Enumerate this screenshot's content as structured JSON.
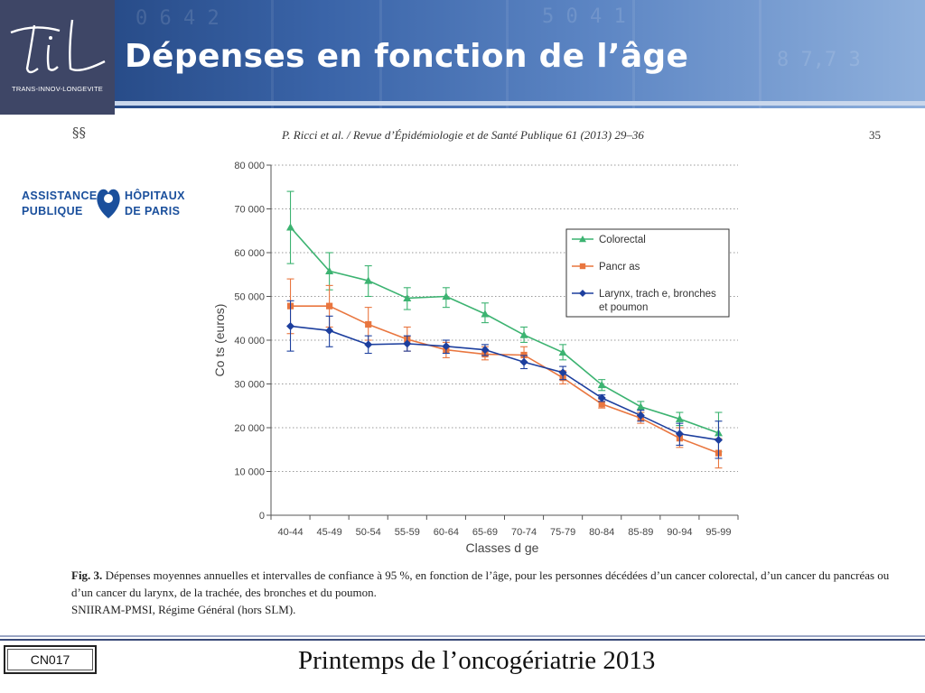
{
  "slide": {
    "title": "Dépenses en fonction de l’âge",
    "logo_tagline": "TRANS-INNOV-LONGEVITE",
    "partner_logo_text": [
      "ASSISTANCE",
      "PUBLIQUE",
      "HÔPITAUX",
      "DE  PARIS"
    ],
    "slide_code": "CN017",
    "footer_text": "Printemps de l’oncogériatrie 2013",
    "colors": {
      "header": "#2b4f8f",
      "logo_bg": "#3e4666",
      "ap_blue": "#1a4f9c"
    }
  },
  "paper": {
    "ornament": "§§",
    "running_header": "P. Ricci et al. / Revue d’Épidémiologie et de Santé Publique 61 (2013) 29–36",
    "page_number": "35",
    "caption_label": "Fig. 3.",
    "caption_text": "Dépenses moyennes annuelles et intervalles de confiance à 95 %, en fonction de l’âge, pour les personnes décédées d’un cancer colorectal, d’un cancer du pancréas ou d’un cancer du larynx, de la trachée, des bronches et du poumon.",
    "source_text": "SNIIRAM-PMSI, Régime Général (hors SLM)."
  },
  "chart_data": {
    "type": "line",
    "xlabel": "Classes d  ge",
    "ylabel": "Co   ts (euros)",
    "ylim": [
      0,
      80000
    ],
    "yticks": [
      0,
      10000,
      20000,
      30000,
      40000,
      50000,
      60000,
      70000,
      80000
    ],
    "ytick_labels": [
      "0",
      "10 000",
      "20 000",
      "30 000",
      "40 000",
      "50 000",
      "60 000",
      "70 000",
      "80 000"
    ],
    "grid": "horizontal dotted",
    "legend_position": "top-right",
    "categories": [
      "40-44",
      "45-49",
      "50-54",
      "55-59",
      "60-64",
      "65-69",
      "70-74",
      "75-79",
      "80-84",
      "85-89",
      "90-94",
      "95-99"
    ],
    "series": [
      {
        "name": "Colorectal",
        "color": "#3cb371",
        "marker": "triangle",
        "values": [
          65800,
          55800,
          53600,
          49600,
          50000,
          46000,
          41200,
          37200,
          29800,
          24800,
          22000,
          18800
        ],
        "lower": [
          57500,
          51500,
          50000,
          47000,
          47500,
          44000,
          39500,
          35500,
          28500,
          23500,
          20500,
          14500
        ],
        "upper": [
          74000,
          60000,
          57000,
          52000,
          52000,
          48500,
          43000,
          39000,
          31000,
          26000,
          23500,
          23500
        ]
      },
      {
        "name": "Pancr  as",
        "color": "#e9763f",
        "marker": "square",
        "values": [
          47800,
          47800,
          43600,
          40200,
          37800,
          36800,
          36600,
          31400,
          25400,
          22200,
          17600,
          14200
        ],
        "lower": [
          41500,
          43000,
          40000,
          37500,
          36000,
          35500,
          35000,
          30000,
          24500,
          21000,
          15500,
          10800
        ],
        "upper": [
          54000,
          52500,
          47500,
          43000,
          39500,
          38500,
          38500,
          33000,
          26500,
          23500,
          20000,
          17500
        ]
      },
      {
        "name": "Larynx, trach  e, bronches et poumon",
        "color": "#1d3f9e",
        "marker": "diamond",
        "values": [
          43200,
          42200,
          39000,
          39200,
          38600,
          37800,
          35000,
          32600,
          26800,
          22800,
          18600,
          17200
        ],
        "lower": [
          37500,
          38500,
          37000,
          37500,
          37000,
          36500,
          33500,
          31000,
          26000,
          21500,
          16000,
          13000
        ],
        "upper": [
          49000,
          45500,
          41000,
          41000,
          40000,
          39000,
          36500,
          34000,
          27500,
          24000,
          21000,
          21500
        ]
      }
    ]
  }
}
